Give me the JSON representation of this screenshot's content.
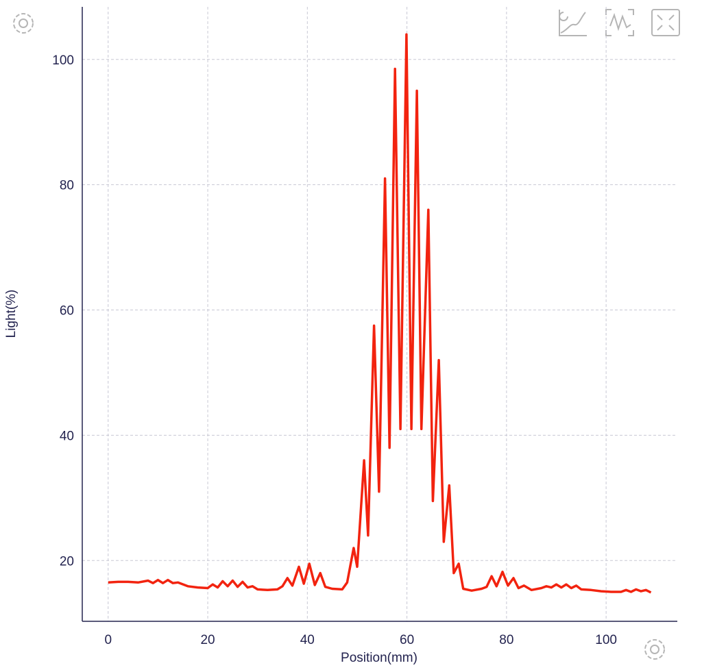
{
  "chart_data": {
    "type": "line",
    "x_label": "Position(mm)",
    "y_label": "Light(%)",
    "xlim": [
      -5.2,
      114.3
    ],
    "ylim": [
      10.3,
      108.4
    ],
    "xticks": [
      0,
      20,
      40,
      60,
      80,
      100
    ],
    "yticks": [
      20,
      40,
      60,
      80,
      100
    ],
    "grid": true,
    "series": [
      {
        "color": "#f2230f",
        "x": [
          0,
          2,
          4,
          6,
          8,
          9,
          10,
          11,
          12,
          13,
          14,
          16,
          18,
          20,
          21,
          22,
          23,
          24,
          25,
          26,
          27,
          28,
          29,
          30,
          32,
          34,
          35,
          36,
          37,
          38.3,
          39.3,
          40.4,
          41.5,
          42.6,
          43.6,
          45,
          47,
          48,
          49.3,
          50.0,
          51.4,
          52.2,
          53.4,
          54.4,
          55.6,
          56.5,
          57.6,
          58.7,
          59.9,
          60.9,
          62.0,
          62.9,
          64.3,
          65.2,
          66.4,
          67.4,
          68.5,
          69.4,
          70.4,
          71.3,
          73,
          75,
          76,
          77,
          78,
          79.2,
          80.3,
          81.4,
          82.4,
          83.5,
          85,
          87,
          88,
          89,
          90,
          91,
          92,
          93,
          94,
          95,
          97,
          99,
          101,
          103,
          104,
          105,
          106,
          107,
          108,
          109
        ],
        "values": [
          16.5,
          16.6,
          16.6,
          16.5,
          16.8,
          16.4,
          16.9,
          16.4,
          16.9,
          16.4,
          16.5,
          15.9,
          15.7,
          15.6,
          16.2,
          15.7,
          16.7,
          15.9,
          16.8,
          15.8,
          16.6,
          15.7,
          15.9,
          15.4,
          15.3,
          15.4,
          15.9,
          17.2,
          16,
          19,
          16.3,
          19.5,
          16.1,
          18,
          15.8,
          15.5,
          15.4,
          16.5,
          22,
          19,
          36,
          24,
          57.5,
          31,
          81,
          38,
          98.5,
          41,
          104,
          41,
          95,
          41,
          76,
          29.5,
          52,
          23,
          32,
          18,
          19.5,
          15.5,
          15.2,
          15.5,
          15.8,
          17.5,
          15.9,
          18.2,
          16,
          17.2,
          15.6,
          16,
          15.3,
          15.6,
          15.9,
          15.7,
          16.2,
          15.7,
          16.2,
          15.6,
          16,
          15.4,
          15.3,
          15.1,
          15,
          15,
          15.3,
          15,
          15.4,
          15.1,
          15.3,
          14.9
        ]
      }
    ]
  }
}
